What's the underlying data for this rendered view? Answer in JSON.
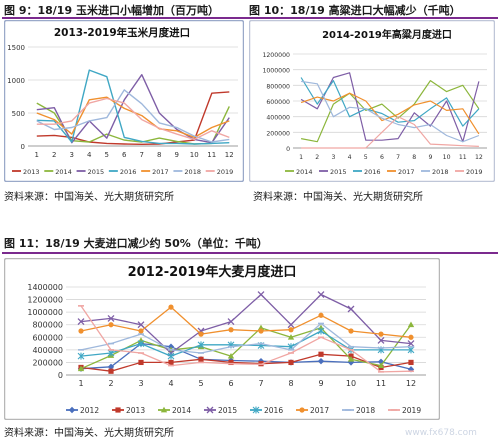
{
  "fig9": {
    "label": "图 9：18/19 玉米进口小幅增加（百万吨）"
  },
  "fig10": {
    "label": "图 10：18/19 高粱进口大幅减少（千吨）"
  },
  "fig11": {
    "label": "图 11：18/19 大麦进口减少约 50%（单位：千吨）"
  },
  "source_left": "资料来源：中国海关、光大期货研究所",
  "source_right": "资料来源：中国海关、光大期货研究所",
  "source_bottom": "资料来源：中国海关、光大期货研究所",
  "watermark": "www.fx678.com",
  "colors": {
    "2012": "#4a6fbd",
    "2013": "#c0392b",
    "2014": "#8cb63c",
    "2015": "#7e5ea6",
    "2016": "#3fa7c4",
    "2017": "#f0902e",
    "2018": "#9fb8dc",
    "2019": "#f0a6a3"
  },
  "chart_data": [
    {
      "id": "corn",
      "type": "line",
      "title": "2013-2019年玉米月度进口",
      "x": [
        "1",
        "2",
        "3",
        "4",
        "5",
        "6",
        "7",
        "8",
        "9",
        "10",
        "11",
        "12"
      ],
      "ylim": [
        0,
        1500
      ],
      "yticks": [
        "0",
        "500",
        "1000",
        "1500"
      ],
      "grid": true,
      "legend": "bottom",
      "series": [
        {
          "name": "2013",
          "values": [
            150,
            160,
            130,
            60,
            40,
            30,
            25,
            30,
            60,
            90,
            800,
            820
          ]
        },
        {
          "name": "2014",
          "values": [
            650,
            500,
            80,
            60,
            180,
            90,
            60,
            120,
            70,
            30,
            40,
            600
          ]
        },
        {
          "name": "2015",
          "values": [
            550,
            580,
            50,
            380,
            120,
            700,
            1080,
            500,
            250,
            100,
            50,
            430
          ]
        },
        {
          "name": "2016",
          "values": [
            390,
            380,
            60,
            1150,
            1050,
            130,
            70,
            40,
            40,
            30,
            40,
            50
          ]
        },
        {
          "name": "2017",
          "values": [
            500,
            400,
            180,
            700,
            740,
            570,
            460,
            260,
            230,
            130,
            280,
            380
          ]
        },
        {
          "name": "2018",
          "values": [
            380,
            250,
            280,
            380,
            430,
            850,
            640,
            350,
            280,
            150,
            60,
            100
          ]
        },
        {
          "name": "2019",
          "values": [
            330,
            330,
            380,
            650,
            720,
            650,
            400,
            270,
            180,
            100,
            230,
            130
          ]
        }
      ]
    },
    {
      "id": "sorghum",
      "type": "line",
      "title": "2014-2019年高粱月度进口",
      "x": [
        "1",
        "2",
        "3",
        "4",
        "5",
        "6",
        "7",
        "8",
        "9",
        "10",
        "11",
        "12"
      ],
      "ylim": [
        0,
        1200000
      ],
      "yticks": [
        "0",
        "200000",
        "400000",
        "600000",
        "800000",
        "1000000",
        "1200000"
      ],
      "grid": true,
      "legend": "bottom",
      "series": [
        {
          "name": "2014",
          "values": [
            120000,
            80000,
            560000,
            700000,
            480000,
            560000,
            380000,
            560000,
            860000,
            720000,
            800000,
            500000
          ]
        },
        {
          "name": "2015",
          "values": [
            620000,
            500000,
            900000,
            960000,
            100000,
            100000,
            120000,
            450000,
            280000,
            600000,
            80000,
            850000
          ]
        },
        {
          "name": "2016",
          "values": [
            900000,
            560000,
            860000,
            400000,
            500000,
            440000,
            330000,
            350000,
            500000,
            640000,
            280000,
            500000
          ]
        },
        {
          "name": "2017",
          "values": [
            580000,
            650000,
            600000,
            700000,
            600000,
            350000,
            430000,
            550000,
            600000,
            480000,
            500000,
            180000
          ]
        },
        {
          "name": "2018",
          "values": [
            850000,
            820000,
            400000,
            520000,
            500000,
            380000,
            300000,
            260000,
            300000,
            160000,
            80000,
            160000
          ]
        },
        {
          "name": "2019",
          "values": [
            0,
            0,
            0,
            0,
            0,
            200000,
            400000,
            300000,
            50000,
            40000,
            30000,
            20000
          ]
        }
      ]
    },
    {
      "id": "barley",
      "type": "line",
      "title": "2012-2019年大麦月度进口",
      "x": [
        "1",
        "2",
        "3",
        "4",
        "5",
        "6",
        "7",
        "8",
        "9",
        "10",
        "11",
        "12"
      ],
      "ylim": [
        0,
        1400000
      ],
      "yticks": [
        "0",
        "200000",
        "400000",
        "600000",
        "800000",
        "1000000",
        "1200000",
        "1400000"
      ],
      "grid": true,
      "legend": "bottom",
      "series": [
        {
          "name": "2012",
          "values": [
            100000,
            130000,
            500000,
            450000,
            250000,
            230000,
            220000,
            200000,
            220000,
            200000,
            210000,
            90000
          ]
        },
        {
          "name": "2013",
          "values": [
            120000,
            60000,
            200000,
            200000,
            250000,
            200000,
            180000,
            200000,
            330000,
            300000,
            120000,
            200000
          ]
        },
        {
          "name": "2014",
          "values": [
            100000,
            310000,
            550000,
            400000,
            450000,
            300000,
            750000,
            600000,
            750000,
            250000,
            150000,
            800000
          ]
        },
        {
          "name": "2015",
          "values": [
            850000,
            900000,
            800000,
            350000,
            700000,
            850000,
            1280000,
            800000,
            1280000,
            1050000,
            550000,
            500000
          ]
        },
        {
          "name": "2016",
          "values": [
            300000,
            350000,
            500000,
            300000,
            480000,
            480000,
            470000,
            450000,
            700000,
            400000,
            400000,
            400000
          ]
        },
        {
          "name": "2017",
          "values": [
            700000,
            800000,
            700000,
            1080000,
            650000,
            720000,
            700000,
            720000,
            950000,
            700000,
            650000,
            600000
          ]
        },
        {
          "name": "2018",
          "values": [
            400000,
            500000,
            650000,
            400000,
            350000,
            450000,
            500000,
            400000,
            820000,
            450000,
            430000,
            450000
          ]
        },
        {
          "name": "2019",
          "values": [
            1100000,
            400000,
            350000,
            150000,
            200000,
            180000,
            170000,
            350000,
            600000,
            400000,
            50000,
            60000
          ]
        }
      ]
    }
  ]
}
